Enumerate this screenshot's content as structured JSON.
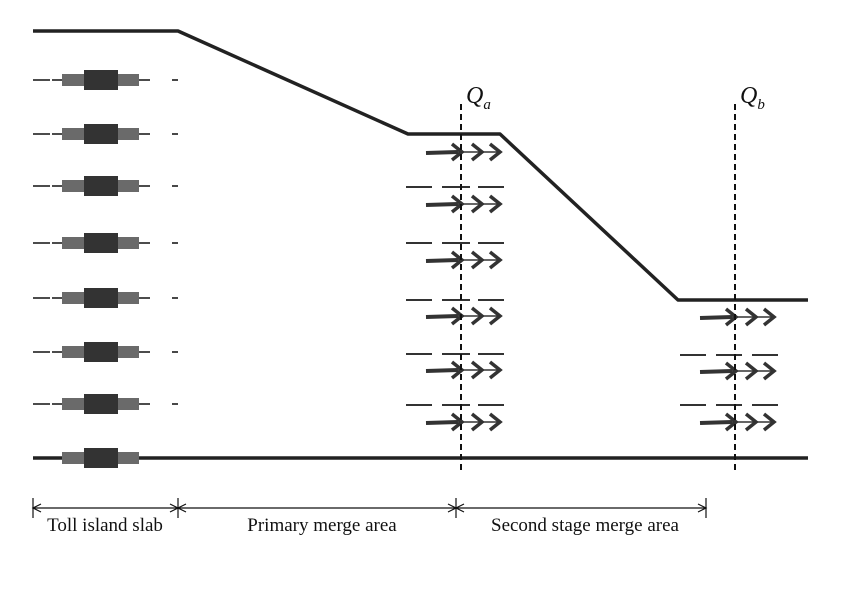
{
  "diagram": {
    "sections": [
      {
        "label": "Toll island slab"
      },
      {
        "label": "Primary merge area"
      },
      {
        "label": "Second stage merge area"
      }
    ],
    "cross_sections": [
      {
        "main": "Q",
        "sub": "a"
      },
      {
        "main": "Q",
        "sub": "b"
      }
    ],
    "toll_booth_count": 8,
    "colors": {
      "road_edge": "#222222",
      "booth_body": "#333333",
      "booth_wing": "#6a6a6a",
      "lane_dash": "#333333",
      "arrow": "#333333",
      "section_line": "#111111"
    }
  }
}
